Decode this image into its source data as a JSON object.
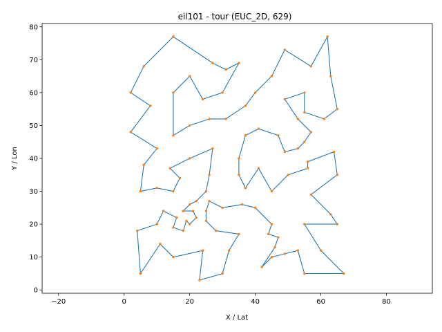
{
  "chart_data": {
    "type": "line",
    "title": "eil101 - tour (EUC_2D, 629)",
    "xlabel": "X / Lat",
    "ylabel": "Y / Lon",
    "xlim": [
      -25,
      94
    ],
    "ylim": [
      -1,
      81
    ],
    "xticks": [
      -20,
      0,
      20,
      40,
      60,
      80
    ],
    "yticks": [
      0,
      10,
      20,
      30,
      40,
      50,
      60,
      70,
      80
    ],
    "grid": false,
    "line_color": "#1f77b4",
    "marker_color": "#ff7f0e",
    "tour": [
      [
        15,
        77
      ],
      [
        27,
        69
      ],
      [
        31,
        67
      ],
      [
        35,
        69
      ],
      [
        30,
        60
      ],
      [
        24,
        58
      ],
      [
        20,
        65
      ],
      [
        15,
        60
      ],
      [
        15,
        47
      ],
      [
        20,
        50
      ],
      [
        26,
        52
      ],
      [
        31,
        52
      ],
      [
        37,
        56
      ],
      [
        40,
        60
      ],
      [
        45,
        65
      ],
      [
        49,
        73
      ],
      [
        57,
        68
      ],
      [
        62,
        77
      ],
      [
        63,
        65
      ],
      [
        65,
        55
      ],
      [
        61,
        52
      ],
      [
        55,
        54
      ],
      [
        55,
        60
      ],
      [
        49,
        58
      ],
      [
        53,
        52
      ],
      [
        57,
        48
      ],
      [
        55,
        45
      ],
      [
        53,
        43
      ],
      [
        49,
        42
      ],
      [
        47,
        47
      ],
      [
        41,
        49
      ],
      [
        37,
        47
      ],
      [
        35,
        40
      ],
      [
        35,
        35
      ],
      [
        37,
        31
      ],
      [
        41,
        37
      ],
      [
        45,
        30
      ],
      [
        50,
        35
      ],
      [
        56,
        37
      ],
      [
        56,
        39
      ],
      [
        64,
        42
      ],
      [
        65,
        35
      ],
      [
        57,
        29
      ],
      [
        63,
        23
      ],
      [
        65,
        20
      ],
      [
        55,
        20
      ],
      [
        60,
        12
      ],
      [
        67,
        5
      ],
      [
        55,
        5
      ],
      [
        53,
        12
      ],
      [
        49,
        11
      ],
      [
        45,
        10
      ],
      [
        42,
        7
      ],
      [
        46,
        13
      ],
      [
        47,
        16
      ],
      [
        44,
        17
      ],
      [
        45,
        20
      ],
      [
        40,
        25
      ],
      [
        36,
        26
      ],
      [
        30,
        25
      ],
      [
        26,
        27
      ],
      [
        25,
        24
      ],
      [
        25,
        21
      ],
      [
        28,
        18
      ],
      [
        35,
        17
      ],
      [
        32,
        12
      ],
      [
        30,
        5
      ],
      [
        23,
        3
      ],
      [
        24,
        12
      ],
      [
        15,
        10
      ],
      [
        11,
        14
      ],
      [
        5,
        5
      ],
      [
        4,
        18
      ],
      [
        10,
        20
      ],
      [
        12,
        24
      ],
      [
        16,
        22
      ],
      [
        15,
        19
      ],
      [
        18,
        18
      ],
      [
        19,
        21
      ],
      [
        20,
        20
      ],
      [
        22,
        22
      ],
      [
        21,
        24
      ],
      [
        18,
        24
      ],
      [
        20,
        26
      ],
      [
        22,
        27
      ],
      [
        25,
        30
      ],
      [
        26,
        35
      ],
      [
        27,
        43
      ],
      [
        20,
        40
      ],
      [
        14,
        37
      ],
      [
        17,
        34
      ],
      [
        15,
        30
      ],
      [
        10,
        31
      ],
      [
        5,
        30
      ],
      [
        6,
        38
      ],
      [
        10,
        43
      ],
      [
        2,
        48
      ],
      [
        8,
        56
      ],
      [
        2,
        60
      ],
      [
        6,
        68
      ],
      [
        15,
        77
      ]
    ]
  }
}
